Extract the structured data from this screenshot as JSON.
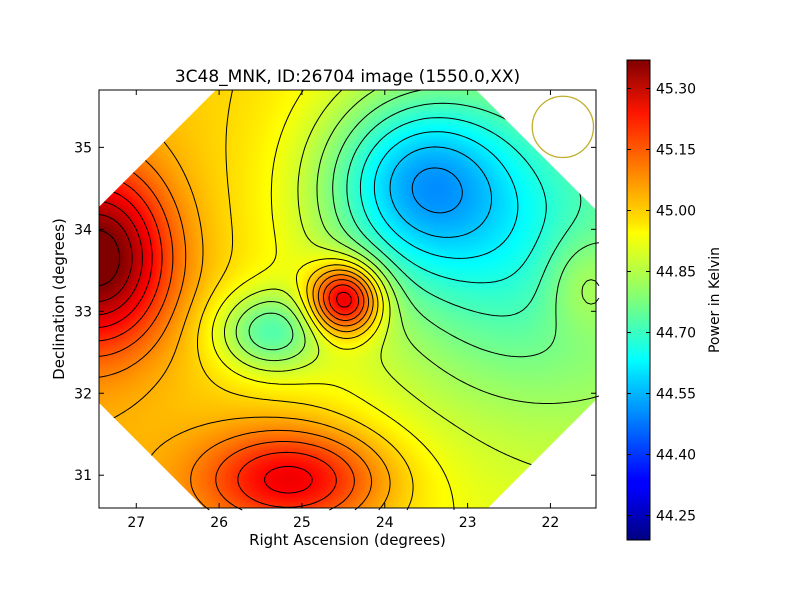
{
  "chart_data": {
    "type": "heatmap",
    "title": "3C48_MNK, ID:26704 image (1550.0,XX)",
    "xlabel": "Right Ascension (degrees)",
    "ylabel": "Declination (degrees)",
    "xlim": [
      27.45,
      21.45
    ],
    "ylim": [
      30.6,
      35.7
    ],
    "xticks": [
      27,
      26,
      25,
      24,
      23,
      22
    ],
    "yticks": [
      31,
      32,
      33,
      34,
      35
    ],
    "grid": false,
    "colormap": "jet",
    "contours": true,
    "colorbar": {
      "label": "Power in Kelvin",
      "vmin": 44.19,
      "vmax": 45.37,
      "ticks": [
        "44.25",
        "44.40",
        "44.55",
        "44.70",
        "44.85",
        "45.00",
        "45.15",
        "45.30"
      ]
    },
    "field": {
      "base": 44.95,
      "tilt_per_deg_ra": 0.02,
      "features": [
        {
          "kind": "peak",
          "ra": 24.48,
          "dec": 33.15,
          "amp": 0.4,
          "sigma_ra": 0.3,
          "sigma_dec": 0.3
        },
        {
          "kind": "peak",
          "ra": 27.45,
          "dec": 33.65,
          "amp": 0.4,
          "sigma_ra": 0.6,
          "sigma_dec": 0.75
        },
        {
          "kind": "peak",
          "ra": 25.1,
          "dec": 30.95,
          "amp": 0.28,
          "sigma_ra": 0.8,
          "sigma_dec": 0.45
        },
        {
          "kind": "trough",
          "ra": 25.4,
          "dec": 32.75,
          "amp": 0.22,
          "sigma_ra": 0.45,
          "sigma_dec": 0.35
        },
        {
          "kind": "trough",
          "ra": 23.6,
          "dec": 34.6,
          "amp": 0.28,
          "sigma_ra": 0.8,
          "sigma_dec": 0.75
        },
        {
          "kind": "trough",
          "ra": 22.5,
          "dec": 33.8,
          "amp": 0.22,
          "sigma_ra": 1.4,
          "sigma_dec": 1.4
        },
        {
          "kind": "peak",
          "ra": 21.6,
          "dec": 33.35,
          "amp": 0.1,
          "sigma_ra": 0.35,
          "sigma_dec": 0.45
        }
      ]
    },
    "beam_circle": {
      "ra": 21.85,
      "dec": 35.25,
      "radius_deg": 0.37,
      "color": "#bfae2a"
    }
  }
}
